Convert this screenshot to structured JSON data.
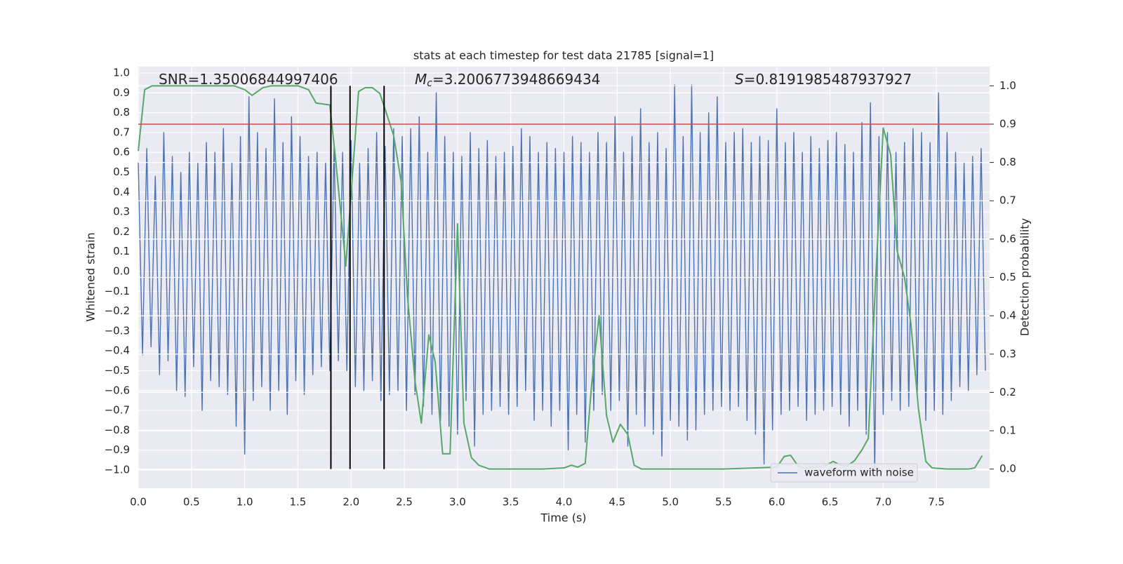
{
  "chart_data": {
    "type": "line",
    "title": "stats at each timestep for test data 21785 [signal=1]",
    "x_label": "Time (s)",
    "y_label": "Whitened strain",
    "y2_label": "Detection probability",
    "xlim": [
      0,
      8
    ],
    "ylim": [
      -1.092,
      1.032
    ],
    "y2lim": [
      -0.05,
      1.05
    ],
    "xticks": [
      {
        "value": 0,
        "label": "0.0"
      },
      0.5,
      {
        "value": 1,
        "label": "1.0"
      },
      1.5,
      {
        "value": 2,
        "label": "2.0"
      },
      2.5,
      {
        "value": 3,
        "label": "3.0"
      },
      3.5,
      {
        "value": 4,
        "label": "4.0"
      },
      4.5,
      {
        "value": 5,
        "label": "5.0"
      },
      5.5,
      {
        "value": 6,
        "label": "6.0"
      },
      6.5,
      {
        "value": 7,
        "label": "7.0"
      },
      7.5
    ],
    "yticks": [
      {
        "value": -1,
        "label": "−1.0"
      },
      {
        "value": -0.9,
        "label": "−0.9"
      },
      {
        "value": -0.8,
        "label": "−0.8"
      },
      {
        "value": -0.7,
        "label": "−0.7"
      },
      {
        "value": -0.6,
        "label": "−0.6"
      },
      {
        "value": -0.5,
        "label": "−0.5"
      },
      {
        "value": -0.4,
        "label": "−0.4"
      },
      {
        "value": -0.3,
        "label": "−0.3"
      },
      {
        "value": -0.2,
        "label": "−0.2"
      },
      {
        "value": -0.1,
        "label": "−0.1"
      },
      {
        "value": 0,
        "label": "0.0"
      },
      0.1,
      0.2,
      0.3,
      0.4,
      0.5,
      0.6,
      0.7,
      0.8,
      0.9,
      {
        "value": 1,
        "label": "1.0"
      }
    ],
    "y2ticks": [
      {
        "value": 0,
        "label": "0.0"
      },
      0.1,
      0.2,
      0.3,
      0.4,
      0.5,
      0.6,
      0.7,
      0.8,
      0.9,
      {
        "value": 1,
        "label": "1.0"
      }
    ],
    "grid": true,
    "legend": "lower right",
    "series": [
      {
        "name": "waveform with noise",
        "color": "#4c72b0",
        "x": [
          0,
          0.04,
          0.08,
          0.12,
          0.16,
          0.2,
          0.24,
          0.28,
          0.32,
          0.36,
          0.4,
          0.44,
          0.48,
          0.52,
          0.56,
          0.6,
          0.64,
          0.68,
          0.72,
          0.76,
          0.8,
          0.84,
          0.88,
          0.92,
          0.96,
          1,
          1.04,
          1.08,
          1.12,
          1.16,
          1.2,
          1.24,
          1.28,
          1.32,
          1.36,
          1.4,
          1.44,
          1.48,
          1.52,
          1.56,
          1.6,
          1.64,
          1.68,
          1.72,
          1.76,
          1.8,
          1.84,
          1.88,
          1.92,
          1.96,
          2,
          2.04,
          2.08,
          2.12,
          2.16,
          2.2,
          2.24,
          2.28,
          2.32,
          2.36,
          2.4,
          2.44,
          2.48,
          2.52,
          2.56,
          2.6,
          2.64,
          2.68,
          2.72,
          2.76,
          2.8,
          2.84,
          2.88,
          2.92,
          2.96,
          3,
          3.04,
          3.08,
          3.12,
          3.16,
          3.2,
          3.24,
          3.28,
          3.32,
          3.36,
          3.4,
          3.44,
          3.48,
          3.52,
          3.56,
          3.6,
          3.64,
          3.68,
          3.72,
          3.76,
          3.8,
          3.84,
          3.88,
          3.92,
          3.96,
          4,
          4.04,
          4.08,
          4.12,
          4.16,
          4.2,
          4.24,
          4.28,
          4.32,
          4.36,
          4.4,
          4.44,
          4.48,
          4.52,
          4.56,
          4.6,
          4.64,
          4.68,
          4.72,
          4.76,
          4.8,
          4.84,
          4.88,
          4.92,
          4.96,
          5,
          5.04,
          5.08,
          5.12,
          5.16,
          5.2,
          5.24,
          5.28,
          5.32,
          5.36,
          5.4,
          5.44,
          5.48,
          5.52,
          5.56,
          5.6,
          5.64,
          5.68,
          5.72,
          5.76,
          5.8,
          5.84,
          5.88,
          5.92,
          5.96,
          6,
          6.04,
          6.08,
          6.12,
          6.16,
          6.2,
          6.24,
          6.28,
          6.32,
          6.36,
          6.4,
          6.44,
          6.48,
          6.52,
          6.56,
          6.6,
          6.64,
          6.68,
          6.72,
          6.76,
          6.8,
          6.84,
          6.88,
          6.92,
          6.96,
          7,
          7.04,
          7.08,
          7.12,
          7.16,
          7.2,
          7.24,
          7.28,
          7.32,
          7.36,
          7.4,
          7.44,
          7.48,
          7.52,
          7.56,
          7.6,
          7.64,
          7.68,
          7.72,
          7.76,
          7.8,
          7.84,
          7.88,
          7.92,
          7.96
        ],
        "values": [
          0.55,
          -0.42,
          0.62,
          -0.38,
          0.48,
          -0.52,
          0.7,
          -0.45,
          0.58,
          -0.6,
          0.5,
          -0.63,
          0.6,
          -0.48,
          0.55,
          -0.7,
          0.65,
          -0.55,
          0.6,
          -0.58,
          0.72,
          -0.62,
          0.55,
          -0.78,
          0.68,
          -0.92,
          0.88,
          -0.65,
          0.7,
          -0.58,
          0.62,
          -0.7,
          0.87,
          -0.6,
          0.65,
          -0.72,
          0.78,
          -0.55,
          0.68,
          -0.62,
          0.58,
          -0.52,
          0.6,
          -0.48,
          0.55,
          -0.5,
          0.63,
          -0.45,
          0.6,
          -0.5,
          0.66,
          -0.58,
          0.55,
          -0.6,
          0.62,
          -0.55,
          0.7,
          -0.65,
          0.63,
          -0.62,
          0.72,
          -0.6,
          0.68,
          -0.7,
          0.72,
          -0.62,
          0.78,
          -0.68,
          0.6,
          -0.72,
          0.9,
          -0.75,
          0.68,
          -0.78,
          0.6,
          -0.82,
          0.58,
          -0.65,
          0.7,
          -0.88,
          0.62,
          -0.72,
          0.66,
          -0.7,
          0.58,
          -0.68,
          0.6,
          -0.72,
          0.63,
          -0.68,
          0.72,
          -0.6,
          0.68,
          -0.75,
          0.6,
          -0.7,
          0.65,
          -0.78,
          0.62,
          -0.7,
          0.6,
          -0.9,
          0.68,
          -0.72,
          0.65,
          -0.86,
          0.6,
          -0.7,
          0.7,
          -0.62,
          0.65,
          -0.7,
          0.78,
          -0.65,
          0.6,
          -0.88,
          0.68,
          -0.72,
          0.82,
          -0.78,
          0.65,
          -0.82,
          0.7,
          -0.93,
          0.62,
          -0.75,
          0.94,
          -0.78,
          0.68,
          -0.85,
          0.94,
          -0.8,
          0.7,
          -0.72,
          0.8,
          -0.7,
          0.88,
          -0.68,
          0.65,
          -0.7,
          0.7,
          -0.68,
          0.72,
          -0.75,
          0.65,
          -0.82,
          0.68,
          -0.97,
          0.66,
          -0.8,
          0.82,
          -0.72,
          0.65,
          -0.7,
          0.7,
          -0.68,
          0.6,
          -0.75,
          0.68,
          -0.72,
          0.62,
          -0.7,
          0.66,
          -0.68,
          0.7,
          -0.72,
          0.64,
          -0.78,
          0.6,
          -0.7,
          0.75,
          -0.82,
          0.85,
          -1.0,
          0.68,
          -0.72,
          0.7,
          -0.65,
          0.6,
          -0.7,
          0.65,
          -0.68,
          0.72,
          -0.62,
          0.7,
          -0.75,
          0.65,
          -0.7,
          0.9,
          -0.72,
          0.7,
          -0.65,
          0.6,
          -0.58,
          0.55,
          -0.6,
          0.58,
          -0.52,
          0.62,
          -0.5
        ]
      },
      {
        "color": "#55a868",
        "axis": "y2",
        "x": [
          0,
          0.06,
          0.13,
          0.5,
          0.9,
          1,
          1.07,
          1.17,
          1.25,
          1.5,
          1.6,
          1.67,
          1.8,
          1.85,
          1.92,
          1.95,
          2,
          2.07,
          2.13,
          2.2,
          2.27,
          2.33,
          2.4,
          2.47,
          2.53,
          2.6,
          2.66,
          2.73,
          2.79,
          2.86,
          2.93,
          3,
          3.06,
          3.13,
          3.2,
          3.3,
          3.6,
          3.8,
          4,
          4.07,
          4.13,
          4.2,
          4.26,
          4.33,
          4.4,
          4.46,
          4.53,
          4.6,
          4.66,
          4.73,
          5,
          5.5,
          5.8,
          6,
          6.07,
          6.13,
          6.2,
          6.26,
          6.4,
          6.46,
          6.53,
          6.6,
          6.66,
          6.73,
          6.8,
          6.86,
          6.93,
          7,
          7.07,
          7.13,
          7.2,
          7.26,
          7.33,
          7.4,
          7.46,
          7.6,
          7.8,
          7.86,
          7.93
        ],
        "values": [
          0.83,
          0.99,
          1,
          1,
          1,
          0.99,
          0.975,
          0.995,
          1,
          1,
          0.99,
          0.955,
          0.95,
          0.82,
          0.62,
          0.53,
          0.72,
          0.985,
          0.995,
          0.995,
          0.98,
          0.93,
          0.87,
          0.75,
          0.45,
          0.23,
          0.12,
          0.35,
          0.28,
          0.04,
          0.04,
          0.64,
          0.12,
          0.03,
          0.01,
          0,
          0,
          0,
          0.003,
          0.01,
          0.005,
          0.015,
          0.22,
          0.4,
          0.14,
          0.07,
          0.117,
          0.09,
          0.01,
          0,
          0,
          0,
          0.003,
          0.005,
          0.033,
          0.036,
          0.008,
          0.003,
          0.006,
          0.01,
          0.02,
          0.01,
          0.008,
          0.022,
          0.05,
          0.08,
          0.5,
          0.89,
          0.82,
          0.57,
          0.5,
          0.38,
          0.16,
          0.02,
          0.003,
          0,
          0,
          0.003,
          0.035
        ]
      }
    ],
    "hlines": {
      "y2": [
        0.9
      ],
      "color": "#c44e52"
    },
    "vlines": {
      "x": [
        1.81,
        1.99,
        2.31
      ],
      "y2range": [
        0,
        1
      ],
      "color": "#000000"
    },
    "annotations": [
      {
        "text": "SNR=1.35006844997406"
      },
      {
        "symbol": "M",
        "sub": "c",
        "text": "=3.2006773948669434"
      },
      {
        "symbol": "S",
        "text": "=0.8191985487937927"
      }
    ]
  }
}
